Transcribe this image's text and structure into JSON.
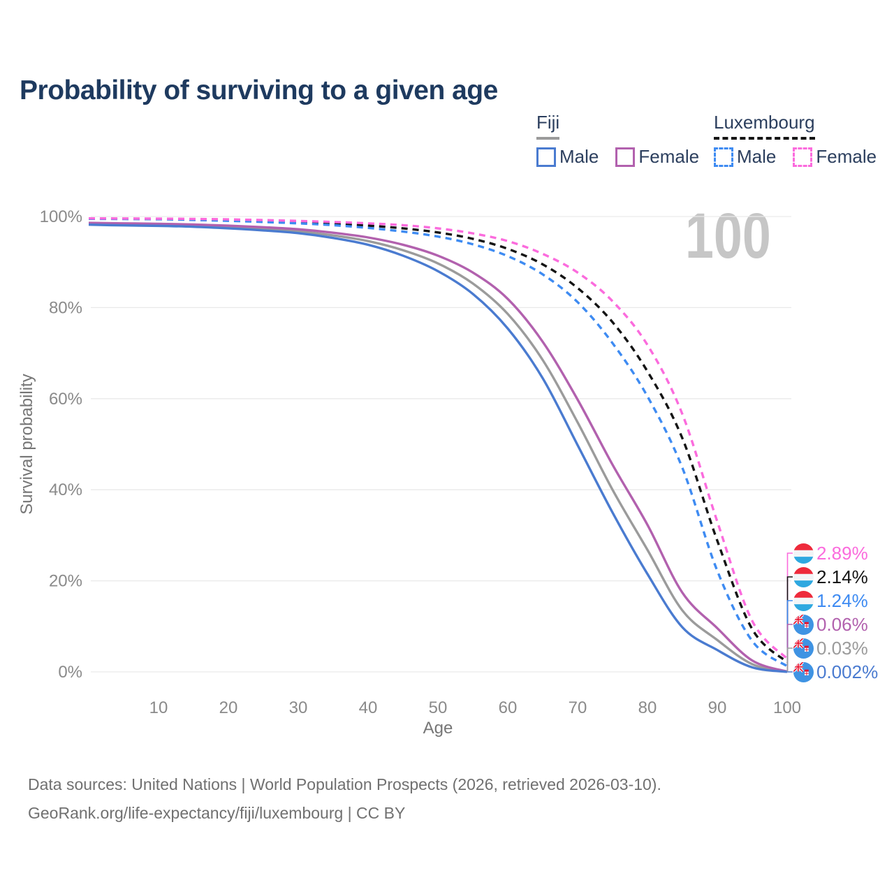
{
  "page": {
    "title": "Probability of surviving to a given age",
    "hover_age_watermark": "100"
  },
  "legend": {
    "groups": [
      {
        "country": "Fiji",
        "underline_style": "solid",
        "underline_color": "#9b9b9b",
        "items": [
          {
            "label": "Male",
            "color": "#4a7bd0",
            "dashed": false
          },
          {
            "label": "Female",
            "color": "#b261ae",
            "dashed": false
          }
        ]
      },
      {
        "country": "Luxembourg",
        "underline_style": "dashed",
        "underline_color": "#141414",
        "items": [
          {
            "label": "Male",
            "color": "#3e8bf2",
            "dashed": true
          },
          {
            "label": "Female",
            "color": "#fb6bdd",
            "dashed": true
          }
        ]
      }
    ]
  },
  "chart_data": {
    "type": "line",
    "title": "Probability of surviving to a given age",
    "xlabel": "Age",
    "ylabel": "Survival probability",
    "xlim": [
      0,
      100
    ],
    "ylim": [
      0,
      100
    ],
    "x_ticks": [
      10,
      20,
      30,
      40,
      50,
      60,
      70,
      80,
      90,
      100
    ],
    "y_ticks": [
      {
        "value": 0,
        "label": "0%"
      },
      {
        "value": 20,
        "label": "20%"
      },
      {
        "value": 40,
        "label": "40%"
      },
      {
        "value": 60,
        "label": "60%"
      },
      {
        "value": 80,
        "label": "80%"
      },
      {
        "value": 100,
        "label": "100%"
      }
    ],
    "grid": "horizontal-only",
    "legend_position": "top-right",
    "x": [
      0,
      5,
      10,
      15,
      20,
      25,
      30,
      35,
      40,
      45,
      50,
      55,
      60,
      65,
      70,
      75,
      80,
      85,
      90,
      95,
      100
    ],
    "series": [
      {
        "name": "Fiji (both sexes)",
        "country": "Fiji",
        "flag": "fj",
        "color": "#9b9b9b",
        "line_style": "solid",
        "end_label": "0.03%",
        "values": [
          98.4,
          98.3,
          98.2,
          98.0,
          97.7,
          97.3,
          96.75,
          95.85,
          94.6,
          92.6,
          89.7,
          85.3,
          78.6,
          68.5,
          54.8,
          40.0,
          26.8,
          13.5,
          7.0,
          1.7,
          0.03
        ]
      },
      {
        "name": "Fiji Female",
        "country": "Fiji",
        "flag": "fj",
        "color": "#b261ae",
        "line_style": "solid",
        "end_label": "0.06%",
        "values": [
          98.6,
          98.5,
          98.4,
          98.25,
          98.0,
          97.65,
          97.2,
          96.45,
          95.4,
          93.8,
          91.4,
          87.7,
          81.9,
          72.5,
          59.8,
          45.5,
          32.3,
          17.4,
          9.6,
          2.5,
          0.06
        ]
      },
      {
        "name": "Fiji Male",
        "country": "Fiji",
        "flag": "fj",
        "color": "#4a7bd0",
        "line_style": "solid",
        "end_label": "0.002%",
        "values": [
          98.2,
          98.05,
          97.95,
          97.75,
          97.4,
          96.95,
          96.35,
          95.3,
          93.8,
          91.4,
          88.0,
          83.0,
          75.4,
          64.5,
          49.8,
          35.0,
          21.5,
          9.8,
          4.8,
          1.0,
          0.002
        ]
      },
      {
        "name": "Luxembourg (both sexes)",
        "country": "Luxembourg",
        "flag": "lu",
        "color": "#141414",
        "line_style": "dashed",
        "end_label": "2.14%",
        "values": [
          99.55,
          99.5,
          99.45,
          99.35,
          99.2,
          99.0,
          98.75,
          98.4,
          98.0,
          97.4,
          96.5,
          95.1,
          92.9,
          89.5,
          84.3,
          76.8,
          66.0,
          51.3,
          28.8,
          9.4,
          2.14
        ]
      },
      {
        "name": "Luxembourg Male",
        "country": "Luxembourg",
        "flag": "lu",
        "color": "#3e8bf2",
        "line_style": "dashed",
        "end_label": "1.24%",
        "values": [
          99.5,
          99.45,
          99.4,
          99.25,
          99.05,
          98.8,
          98.5,
          98.1,
          97.5,
          96.7,
          95.6,
          93.9,
          91.3,
          87.3,
          81.2,
          72.2,
          60.5,
          44.8,
          22.2,
          6.8,
          1.24
        ]
      },
      {
        "name": "Luxembourg Female",
        "country": "Luxembourg",
        "flag": "lu",
        "color": "#fb6bdd",
        "line_style": "dashed",
        "end_label": "2.89%",
        "values": [
          99.6,
          99.57,
          99.53,
          99.47,
          99.37,
          99.22,
          99.03,
          98.8,
          98.5,
          98.1,
          97.4,
          96.3,
          94.6,
          91.8,
          87.7,
          81.4,
          71.8,
          56.6,
          33.0,
          11.2,
          2.89
        ]
      }
    ]
  },
  "footer": {
    "line1": "Data sources: United Nations | World Population Prospects (2026, retrieved 2026-03-10).",
    "line2": "GeoRank.org/life-expectancy/fiji/luxembourg | CC BY"
  }
}
